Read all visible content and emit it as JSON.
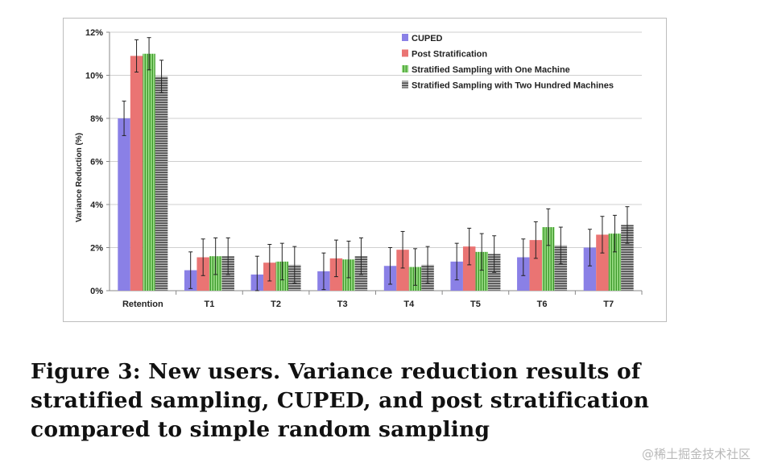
{
  "chart_data": {
    "type": "bar",
    "title": "",
    "xlabel": "",
    "ylabel": "Variance Reduction  (%)",
    "ylim": [
      0,
      12
    ],
    "yticks": [
      0,
      2,
      4,
      6,
      8,
      10,
      12
    ],
    "ytick_labels": [
      "0%",
      "2%",
      "4%",
      "6%",
      "8%",
      "10%",
      "12%"
    ],
    "grid": "horizontal",
    "legend_position": "top-right",
    "categories": [
      "Retention",
      "T1",
      "T2",
      "T3",
      "T4",
      "T5",
      "T6",
      "T7"
    ],
    "series": [
      {
        "name": "CUPED",
        "color": "#8a80e6",
        "pattern": "solid",
        "values": [
          8.0,
          0.95,
          0.75,
          0.9,
          1.15,
          1.35,
          1.55,
          2.0
        ],
        "error": [
          0.8,
          0.85,
          0.85,
          0.85,
          0.85,
          0.85,
          0.85,
          0.85
        ]
      },
      {
        "name": "Post Stratification",
        "color": "#ea7473",
        "pattern": "solid",
        "values": [
          10.9,
          1.55,
          1.3,
          1.5,
          1.9,
          2.05,
          2.35,
          2.6
        ],
        "error": [
          0.75,
          0.85,
          0.85,
          0.85,
          0.85,
          0.85,
          0.85,
          0.85
        ]
      },
      {
        "name": "Stratified Sampling with One Machine",
        "color": "#68c24e",
        "pattern": "vertical-stripes",
        "values": [
          11.0,
          1.6,
          1.35,
          1.45,
          1.1,
          1.8,
          2.95,
          2.65
        ],
        "error": [
          0.75,
          0.85,
          0.85,
          0.85,
          0.85,
          0.85,
          0.85,
          0.85
        ]
      },
      {
        "name": "Stratified Sampling with Two Hundred Machines",
        "color": "#7a7a7a",
        "pattern": "horizontal-stripes",
        "values": [
          9.95,
          1.6,
          1.2,
          1.6,
          1.2,
          1.7,
          2.1,
          3.05
        ],
        "error": [
          0.75,
          0.85,
          0.85,
          0.85,
          0.85,
          0.85,
          0.85,
          0.85
        ]
      }
    ]
  },
  "caption": "Figure 3: New users. Variance reduction results of stratified sampling, CUPED, and post stratification compared to simple random sampling",
  "watermark": "@稀土掘金技术社区"
}
